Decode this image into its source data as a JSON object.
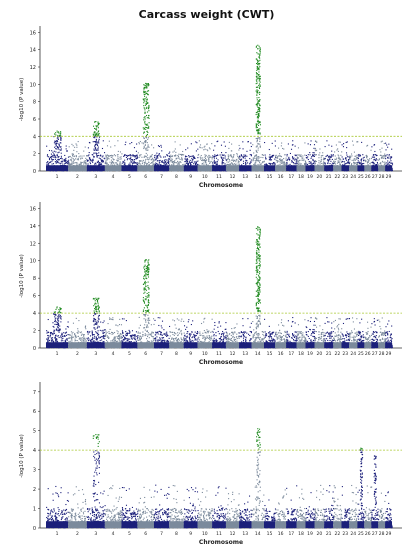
{
  "title": "Carcass weight (CWT)",
  "colors": {
    "dark": "#1b1f7a",
    "light": "#7b8a9c",
    "significant": "#1f8a1f",
    "threshold": "#a8c832",
    "axis": "#333333"
  },
  "chart_data": [
    {
      "type": "scatter",
      "xlabel": "Chromosome",
      "ylabel": "-log10 (P value)",
      "ylim": [
        0,
        16.5
      ],
      "yticks": [
        0,
        2,
        4,
        6,
        8,
        10,
        12,
        14,
        16
      ],
      "threshold": 4,
      "categories": [
        "1",
        "2",
        "3",
        "4",
        "5",
        "6",
        "7",
        "8",
        "9",
        "10",
        "11",
        "12",
        "13",
        "14",
        "15",
        "16",
        "17",
        "18",
        "19",
        "20",
        "21",
        "22",
        "23",
        "24",
        "25",
        "26",
        "27",
        "28",
        "29"
      ],
      "peaks": [
        {
          "chromosome": "1",
          "max": 4.6
        },
        {
          "chromosome": "3",
          "max": 5.7
        },
        {
          "chromosome": "6",
          "max": 10.1
        },
        {
          "chromosome": "14",
          "max": 14.5
        }
      ]
    },
    {
      "type": "scatter",
      "xlabel": "Chromosome",
      "ylabel": "-log10 (P value)",
      "ylim": [
        0,
        16.5
      ],
      "yticks": [
        0,
        2,
        4,
        6,
        8,
        10,
        12,
        14,
        16
      ],
      "threshold": 4,
      "categories": [
        "1",
        "2",
        "3",
        "4",
        "5",
        "6",
        "7",
        "8",
        "9",
        "10",
        "11",
        "12",
        "13",
        "14",
        "15",
        "16",
        "17",
        "18",
        "19",
        "20",
        "21",
        "22",
        "23",
        "24",
        "25",
        "26",
        "27",
        "28",
        "29"
      ],
      "peaks": [
        {
          "chromosome": "1",
          "max": 4.7
        },
        {
          "chromosome": "3",
          "max": 5.7
        },
        {
          "chromosome": "6",
          "max": 10.1
        },
        {
          "chromosome": "14",
          "max": 13.9
        }
      ]
    },
    {
      "type": "scatter",
      "xlabel": "Chromosome",
      "ylabel": "-log10 (P value)",
      "ylim": [
        0,
        7.4
      ],
      "yticks": [
        0,
        1,
        2,
        3,
        4,
        5,
        6,
        7
      ],
      "threshold": 4,
      "categories": [
        "1",
        "2",
        "3",
        "4",
        "5",
        "6",
        "7",
        "8",
        "9",
        "10",
        "11",
        "12",
        "13",
        "14",
        "15",
        "16",
        "17",
        "18",
        "19",
        "20",
        "21",
        "22",
        "23",
        "24",
        "25",
        "26",
        "27",
        "28",
        "29"
      ],
      "peaks": [
        {
          "chromosome": "3",
          "max": 4.8
        },
        {
          "chromosome": "14",
          "max": 5.1
        },
        {
          "chromosome": "25",
          "max": 4.1
        },
        {
          "chromosome": "27",
          "max": 3.7
        }
      ]
    }
  ]
}
